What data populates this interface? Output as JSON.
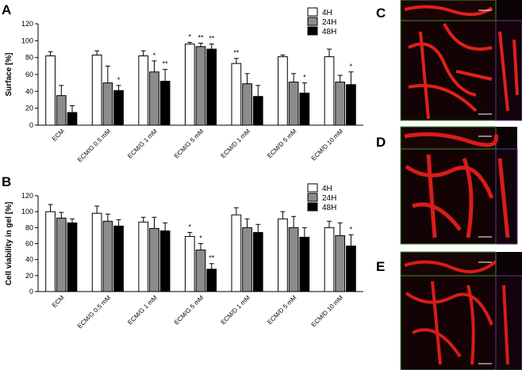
{
  "chart_data": [
    {
      "type": "bar",
      "panel_label": "A",
      "y_label": "Surface [%]",
      "categories": [
        "ECM",
        "ECM/G 0.5 mM",
        "ECM/G 1 mM",
        "ECM/G 5 mM",
        "ECM/D  1 mM",
        "ECM/D 5 mM",
        "ECM/D 10 mM"
      ],
      "series": [
        {
          "name": "4H",
          "color": "#ffffff",
          "values": [
            82,
            83,
            82,
            96,
            73,
            81,
            81
          ],
          "errors": [
            5,
            5,
            6,
            2,
            6,
            2,
            9
          ],
          "annotations": [
            null,
            null,
            null,
            "*",
            "**",
            null,
            null
          ]
        },
        {
          "name": "24H",
          "color": "#8c8c8c",
          "values": [
            35,
            50,
            63,
            93,
            49,
            51,
            51
          ],
          "errors": [
            12,
            20,
            13,
            4,
            12,
            10,
            8
          ],
          "annotations": [
            null,
            null,
            "*",
            "**",
            null,
            null,
            null
          ]
        },
        {
          "name": "48H",
          "color": "#000000",
          "values": [
            15,
            41,
            52,
            90,
            34,
            38,
            48
          ],
          "errors": [
            8,
            6,
            14,
            6,
            13,
            12,
            15
          ],
          "annotations": [
            null,
            "*",
            "**",
            "**",
            null,
            "*",
            "*"
          ]
        }
      ],
      "ylim": [
        0,
        120
      ],
      "yticks": [
        0,
        20,
        40,
        60,
        80,
        100,
        120
      ],
      "legend": "top-right"
    },
    {
      "type": "bar",
      "panel_label": "B",
      "y_label": "Cell viability in gel [%]",
      "categories": [
        "ECM",
        "ECM/G 0.5 mM",
        "ECM/G 1 mM",
        "ECM/G 5 mM",
        "ECM/D 1 mM",
        "ECM/D 5 mM",
        "ECM/D 10 mM"
      ],
      "series": [
        {
          "name": "4H",
          "color": "#ffffff",
          "values": [
            100,
            98,
            87,
            69,
            96,
            91,
            80
          ],
          "errors": [
            9,
            9,
            6,
            5,
            9,
            9,
            8
          ],
          "annotations": [
            null,
            null,
            null,
            "*",
            null,
            null,
            null
          ]
        },
        {
          "name": "24H",
          "color": "#8c8c8c",
          "values": [
            92,
            88,
            79,
            52,
            80,
            80,
            70
          ],
          "errors": [
            7,
            9,
            14,
            8,
            11,
            14,
            16
          ],
          "annotations": [
            null,
            null,
            null,
            "*",
            null,
            null,
            null
          ]
        },
        {
          "name": "48H",
          "color": "#000000",
          "values": [
            86,
            82,
            76,
            28,
            74,
            68,
            57
          ],
          "errors": [
            5,
            8,
            10,
            7,
            10,
            12,
            14
          ],
          "annotations": [
            null,
            null,
            null,
            "**",
            null,
            null,
            "*"
          ]
        }
      ],
      "ylim": [
        0,
        120
      ],
      "yticks": [
        0,
        20,
        40,
        60,
        80,
        100,
        120
      ],
      "legend": "top-right"
    }
  ],
  "image_panels": [
    "C",
    "D",
    "E"
  ]
}
